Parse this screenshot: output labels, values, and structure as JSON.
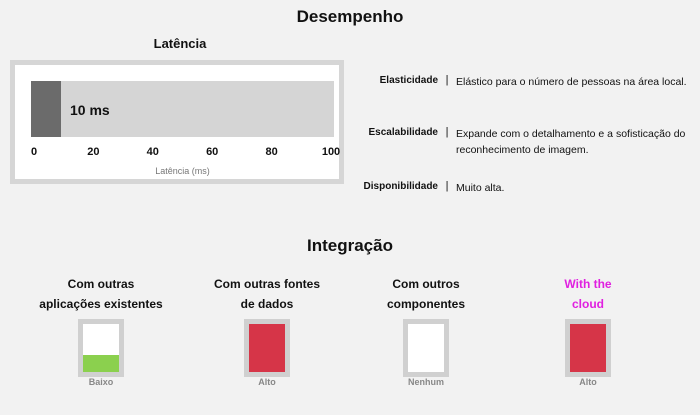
{
  "performance": {
    "title": "Desempenho",
    "latency": {
      "title": "Latência",
      "value_label": "10 ms",
      "value": 10,
      "max": 100,
      "ticks": [
        "0",
        "20",
        "40",
        "60",
        "80",
        "100"
      ],
      "axis_label": "Latência (ms)"
    },
    "properties": [
      {
        "label": "Elasticidade",
        "separator": "|",
        "value": "Elástico para o número de pessoas na área local."
      },
      {
        "label": "Escalabilidade",
        "separator": "|",
        "value": "Expande com o detalhamento e a sofisticação do reconhecimento de imagem."
      },
      {
        "label": "Disponibilidade",
        "separator": "|",
        "value": "Muito alta."
      }
    ]
  },
  "integration": {
    "title": "Integração",
    "items": [
      {
        "label_line1": "Com outras",
        "label_line2": "aplicações existentes",
        "caption": "Baixo",
        "level": 0.35,
        "fill_color": "#8bd04e",
        "label_color": "#111111"
      },
      {
        "label_line1": "Com outras fontes",
        "label_line2": "de dados",
        "caption": "Alto",
        "level": 1.0,
        "fill_color": "#d63548",
        "label_color": "#111111"
      },
      {
        "label_line1": "Com outros",
        "label_line2": "componentes",
        "caption": "Nenhum",
        "level": 0.0,
        "fill_color": "#ffffff",
        "label_color": "#111111"
      },
      {
        "label_line1": "With the",
        "label_line2": "cloud",
        "caption": "Alto",
        "level": 1.0,
        "fill_color": "#d63548",
        "label_color": "#e020e0"
      }
    ]
  }
}
